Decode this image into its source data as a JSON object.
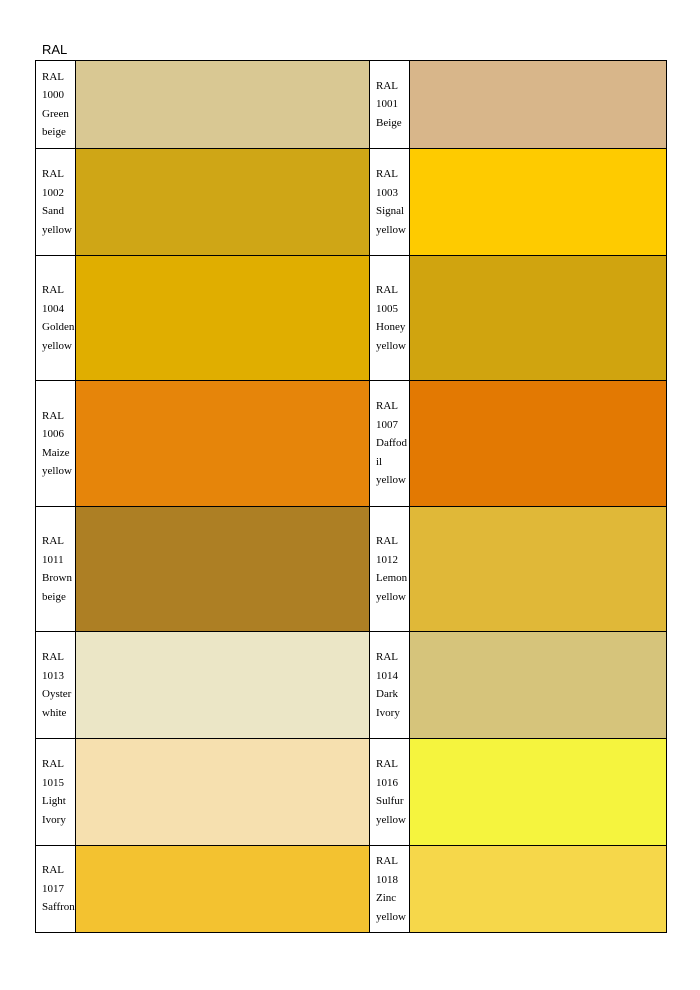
{
  "title": "RAL",
  "table": {
    "rows": [
      [
        {
          "label": "RAL 1000 Green beige",
          "color": "#d9c893"
        },
        {
          "label": "RAL 1001 Beige",
          "color": "#d8b68a"
        }
      ],
      [
        {
          "label": "RAL 1002 Sand yellow",
          "color": "#cfa616"
        },
        {
          "label": "RAL 1003 Signal yellow",
          "color": "#fecb00"
        }
      ],
      [
        {
          "label": "RAL 1004 Golden yellow",
          "color": "#e0ae00"
        },
        {
          "label": "RAL 1005 Honey yellow",
          "color": "#d0a40f"
        }
      ],
      [
        {
          "label": "RAL 1006 Maize yellow",
          "color": "#e6850a"
        },
        {
          "label": "RAL 1007 Daffodil yellow",
          "color": "#e37902"
        }
      ],
      [
        {
          "label": "RAL 1011 Brown beige",
          "color": "#ad7f24"
        },
        {
          "label": "RAL 1012 Lemon yellow",
          "color": "#e0b838"
        }
      ],
      [
        {
          "label": "RAL 1013 Oyster white",
          "color": "#ebe6c6"
        },
        {
          "label": "RAL 1014 Dark Ivory",
          "color": "#d6c47b"
        }
      ],
      [
        {
          "label": "RAL 1015 Light Ivory",
          "color": "#f6e0af"
        },
        {
          "label": "RAL 1016 Sulfur yellow",
          "color": "#f5f43e"
        }
      ],
      [
        {
          "label": "RAL 1017 Saffron",
          "color": "#f3c230"
        },
        {
          "label": "RAL 1018 Zinc yellow",
          "color": "#f6d74a"
        }
      ]
    ]
  }
}
